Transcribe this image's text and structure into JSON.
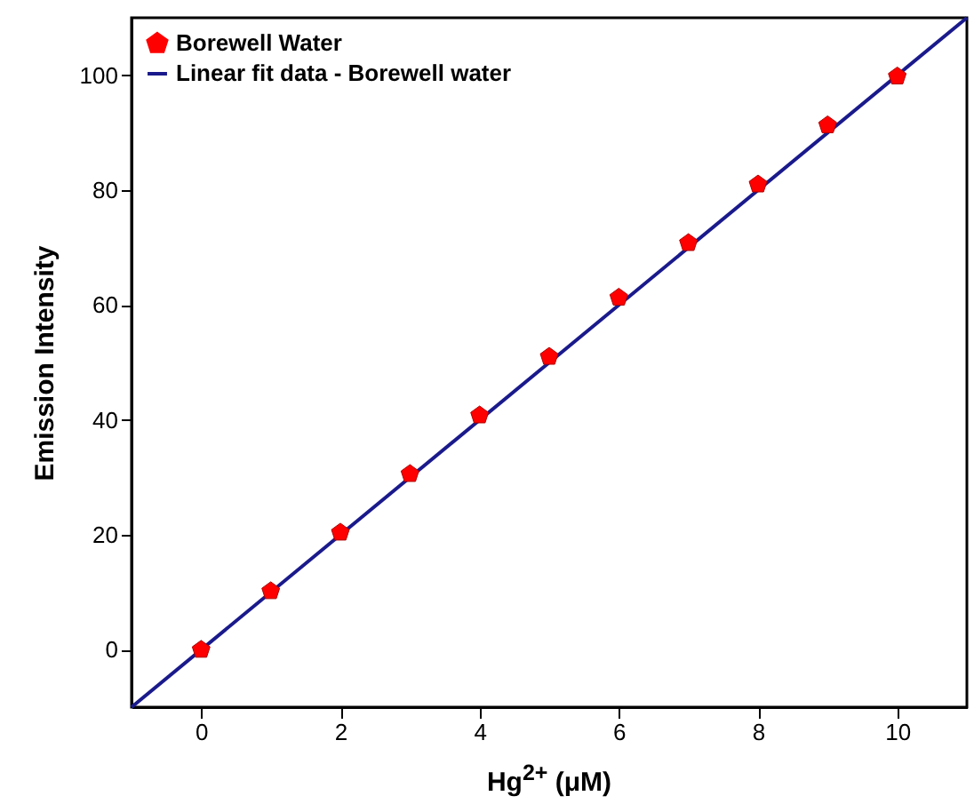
{
  "chart_data": {
    "type": "scatter",
    "xlabel": "Hg$^{2+}$ (μM)",
    "ylabel": "Emission Intensity",
    "xlim": [
      -1,
      11
    ],
    "ylim": [
      -10,
      110
    ],
    "xticks": [
      0,
      2,
      4,
      6,
      8,
      10
    ],
    "yticks": [
      0,
      20,
      40,
      60,
      80,
      100
    ],
    "legend": "top left",
    "grid": false,
    "series": [
      {
        "name": "Borewell Water",
        "color": "#ff0000",
        "x": [
          0,
          1,
          2,
          3,
          4,
          5,
          6,
          7,
          8,
          9,
          10
        ],
        "values": [
          0,
          10.2,
          20.4,
          30.6,
          40.8,
          51,
          61.3,
          70.8,
          81,
          91.3,
          99.8
        ]
      },
      {
        "name": "Linear fit data - Borewell water",
        "type": "line",
        "line_style": "solid",
        "color": "#1a1a8c",
        "x": [
          -1,
          11
        ],
        "values": [
          -10,
          110
        ]
      }
    ]
  }
}
